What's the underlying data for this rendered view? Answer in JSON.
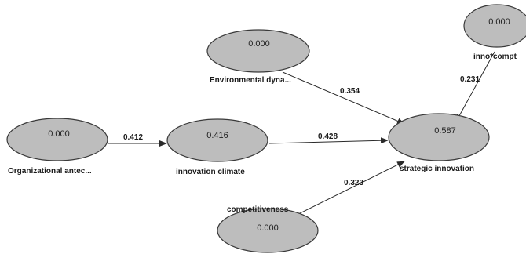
{
  "nodes": {
    "organizational": {
      "value": "0.000",
      "label": "Organizational antec..."
    },
    "innovation_climate": {
      "value": "0.416",
      "label": "innovation climate"
    },
    "environmental": {
      "value": "0.000",
      "label": "Environmental dyna..."
    },
    "strategic": {
      "value": "0.587",
      "label": "strategic innovation"
    },
    "competitiveness": {
      "value": "0.000",
      "label": "competitiveness"
    },
    "inno_compt": {
      "value": "0.000",
      "label": "inno*compt"
    }
  },
  "edges": {
    "org_to_climate": {
      "weight": "0.412"
    },
    "climate_to_strategic": {
      "weight": "0.428"
    },
    "env_to_strategic": {
      "weight": "0.354"
    },
    "comp_to_strategic": {
      "weight": "0.323"
    },
    "inno_to_strategic": {
      "weight": "0.231"
    }
  }
}
